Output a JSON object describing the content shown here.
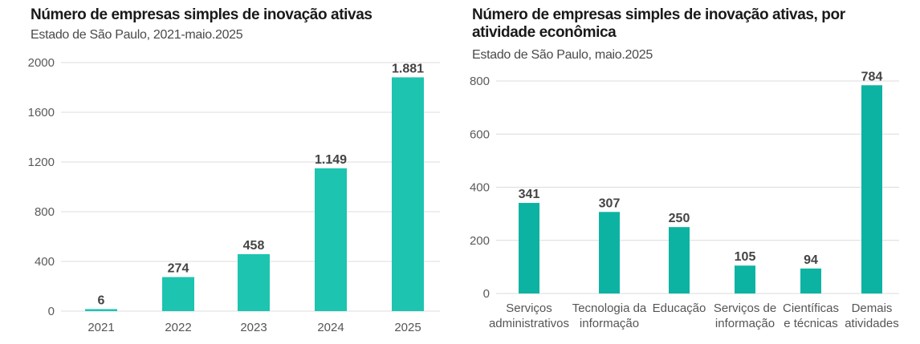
{
  "chart_data": [
    {
      "type": "bar",
      "title": "Número de empresas simples de inovação ativas",
      "subtitle": "Estado de São Paulo, 2021-maio.2025",
      "categories": [
        "2021",
        "2022",
        "2023",
        "2024",
        "2025"
      ],
      "values": [
        6,
        274,
        458,
        1149,
        1881
      ],
      "value_labels": [
        "6",
        "274",
        "458",
        "1.149",
        "1.881"
      ],
      "yticks": [
        "0",
        "400",
        "800",
        "1200",
        "1600",
        "2000"
      ],
      "ylim": [
        0,
        2000
      ],
      "grid": true,
      "bar_color": "#1dc4b0"
    },
    {
      "type": "bar",
      "title": "Número de empresas simples de inovação ativas, por atividade econômica",
      "title_lines": [
        "Número de empresas simples de inovação ativas, por",
        "atividade econômica"
      ],
      "subtitle": "Estado de São Paulo, maio.2025",
      "categories": [
        [
          "Serviços",
          "administrativos"
        ],
        [
          "Tecnologia da",
          "informação"
        ],
        [
          "Educação"
        ],
        [
          "Serviços de",
          "informação"
        ],
        [
          "Científicas",
          "e técnicas"
        ],
        [
          "Demais",
          "atividades"
        ]
      ],
      "values": [
        341,
        307,
        250,
        105,
        94,
        784
      ],
      "value_labels": [
        "341",
        "307",
        "250",
        "105",
        "94",
        "784"
      ],
      "yticks": [
        "0",
        "200",
        "400",
        "600",
        "800"
      ],
      "ylim": [
        0,
        800
      ],
      "grid": true,
      "bar_color": "#0db3a2"
    }
  ]
}
